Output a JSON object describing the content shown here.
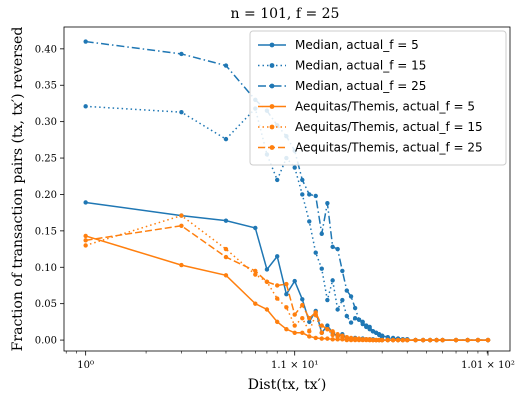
{
  "chart_data": {
    "type": "line",
    "title": "n = 101, f = 25",
    "xlabel": "Dist(tx, tx′)",
    "ylabel": "Fraction of transaction pairs (tx, tx′) reversed",
    "xscale": "log",
    "xlim": [
      0.78,
      130
    ],
    "ylim": [
      -0.015,
      0.43
    ],
    "xticks": [
      {
        "value": 1,
        "label": "10⁰"
      },
      {
        "value": 11,
        "label": "1.1 × 10¹"
      },
      {
        "value": 101,
        "label": "1.01 × 10²"
      }
    ],
    "yticks": [
      0.0,
      0.05,
      0.1,
      0.15,
      0.2,
      0.25,
      0.3,
      0.35,
      0.4
    ],
    "ytick_labels": [
      "0.00",
      "0.05",
      "0.10",
      "0.15",
      "0.20",
      "0.25",
      "0.30",
      "0.35",
      "0.40"
    ],
    "grid": false,
    "legend_position": "top-right",
    "colors": {
      "median": "#1f77b4",
      "aequitas": "#ff7f0e"
    },
    "series": [
      {
        "name": "Median, actual_f = 5",
        "color": "#1f77b4",
        "dash": "solid",
        "x": [
          1,
          3,
          5,
          7,
          8,
          9,
          10,
          11,
          12,
          13,
          14,
          15,
          16,
          17,
          18,
          19,
          20,
          21,
          22,
          23,
          24,
          25,
          26,
          27,
          28,
          29,
          30,
          32,
          34,
          36,
          38,
          40,
          44,
          48,
          52,
          56,
          60,
          70,
          80,
          90,
          101
        ],
        "y": [
          0.189,
          0.171,
          0.164,
          0.154,
          0.097,
          0.115,
          0.063,
          0.081,
          0.056,
          0.025,
          0.04,
          0.01,
          0.02,
          0.01,
          0.005,
          0.008,
          0.003,
          0.002,
          0.003,
          0.001,
          0.002,
          0.001,
          0.001,
          0.001,
          0,
          0,
          0,
          0,
          0,
          0,
          0,
          0,
          0,
          0,
          0,
          0,
          0,
          0,
          0,
          0,
          0
        ]
      },
      {
        "name": "Median, actual_f = 15",
        "color": "#1f77b4",
        "dash": "dotted",
        "x": [
          1,
          3,
          5,
          7,
          8,
          9,
          10,
          11,
          12,
          13,
          14,
          15,
          16,
          17,
          18,
          19,
          20,
          21,
          22,
          23,
          24,
          25,
          26,
          27,
          28,
          29,
          30,
          32,
          34,
          36,
          38,
          40,
          44,
          48,
          52,
          56,
          60,
          70,
          80,
          90,
          101
        ],
        "y": [
          0.321,
          0.313,
          0.276,
          0.318,
          0.255,
          0.22,
          0.25,
          0.237,
          0.2,
          0.163,
          0.12,
          0.098,
          0.055,
          0.082,
          0.042,
          0.055,
          0.033,
          0.024,
          0.03,
          0.028,
          0.022,
          0.018,
          0.018,
          0.012,
          0.01,
          0.007,
          0.004,
          0.003,
          0.002,
          0.002,
          0.001,
          0.001,
          0,
          0,
          0,
          0,
          0,
          0,
          0,
          0,
          0
        ]
      },
      {
        "name": "Median, actual_f = 25",
        "color": "#1f77b4",
        "dash": "dashdot",
        "x": [
          1,
          3,
          5,
          7,
          8,
          9,
          10,
          11,
          12,
          13,
          14,
          15,
          16,
          17,
          18,
          19,
          20,
          21,
          22,
          23,
          24,
          25,
          26,
          27,
          28,
          29,
          30,
          32,
          34,
          36,
          38,
          40,
          44,
          48,
          52,
          56,
          60,
          70,
          80,
          90,
          101
        ],
        "y": [
          0.41,
          0.393,
          0.377,
          0.33,
          0.315,
          0.295,
          0.28,
          0.26,
          0.22,
          0.2,
          0.198,
          0.146,
          0.188,
          0.128,
          0.125,
          0.095,
          0.068,
          0.06,
          0.044,
          0.028,
          0.025,
          0.02,
          0.015,
          0.012,
          0.01,
          0.008,
          0.006,
          0.004,
          0.003,
          0.002,
          0.001,
          0.001,
          0,
          0,
          0,
          0,
          0,
          0,
          0,
          0,
          0
        ]
      },
      {
        "name": "Aequitas/Themis, actual_f = 5",
        "color": "#ff7f0e",
        "dash": "solid",
        "x": [
          1,
          3,
          5,
          7,
          8,
          9,
          10,
          11,
          12,
          13,
          14,
          15,
          16,
          17,
          18,
          19,
          20,
          21,
          22,
          23,
          24,
          25,
          26,
          27,
          28,
          29,
          30,
          32,
          34,
          36,
          38,
          40,
          44,
          48,
          52,
          56,
          60,
          70,
          80,
          90,
          101
        ],
        "y": [
          0.143,
          0.103,
          0.089,
          0.05,
          0.042,
          0.025,
          0.015,
          0.01,
          0.01,
          0.005,
          0.003,
          0.002,
          0.002,
          0.001,
          0.001,
          0.001,
          0,
          0,
          0,
          0,
          0,
          0,
          0,
          0,
          0,
          0,
          0,
          0,
          0,
          0,
          0,
          0,
          0,
          0,
          0,
          0,
          0,
          0,
          0,
          0,
          0
        ]
      },
      {
        "name": "Aequitas/Themis, actual_f = 15",
        "color": "#ff7f0e",
        "dash": "dotted",
        "x": [
          1,
          3,
          5,
          7,
          8,
          9,
          10,
          11,
          12,
          13,
          14,
          15,
          16,
          17,
          18,
          19,
          20,
          21,
          22,
          23,
          24,
          25,
          26,
          27,
          28,
          29,
          30,
          32,
          34,
          36,
          38,
          40,
          44,
          48,
          52,
          56,
          60,
          70,
          80,
          90,
          101
        ],
        "y": [
          0.13,
          0.171,
          0.125,
          0.09,
          0.08,
          0.057,
          0.045,
          0.02,
          0.03,
          0.012,
          0.035,
          0.01,
          0.015,
          0.007,
          0.005,
          0.004,
          0.003,
          0.002,
          0.002,
          0.001,
          0.001,
          0.001,
          0,
          0,
          0,
          0,
          0,
          0,
          0,
          0,
          0,
          0,
          0,
          0,
          0,
          0,
          0,
          0,
          0,
          0,
          0
        ]
      },
      {
        "name": "Aequitas/Themis, actual_f = 25",
        "color": "#ff7f0e",
        "dash": "dashed",
        "x": [
          1,
          3,
          5,
          7,
          8,
          9,
          10,
          11,
          12,
          13,
          14,
          15,
          16,
          17,
          18,
          19,
          20,
          21,
          22,
          23,
          24,
          25,
          26,
          27,
          28,
          29,
          30,
          32,
          34,
          36,
          38,
          40,
          44,
          48,
          52,
          56,
          60,
          70,
          80,
          90,
          101
        ],
        "y": [
          0.137,
          0.157,
          0.114,
          0.095,
          0.08,
          0.075,
          0.077,
          0.035,
          0.048,
          0.03,
          0.038,
          0.02,
          0.015,
          0.012,
          0.008,
          0.006,
          0.004,
          0.003,
          0.002,
          0.002,
          0.001,
          0.001,
          0.001,
          0,
          0,
          0,
          0,
          0,
          0,
          0,
          0,
          0,
          0,
          0,
          0,
          0,
          0,
          0,
          0,
          0,
          0
        ]
      }
    ]
  }
}
